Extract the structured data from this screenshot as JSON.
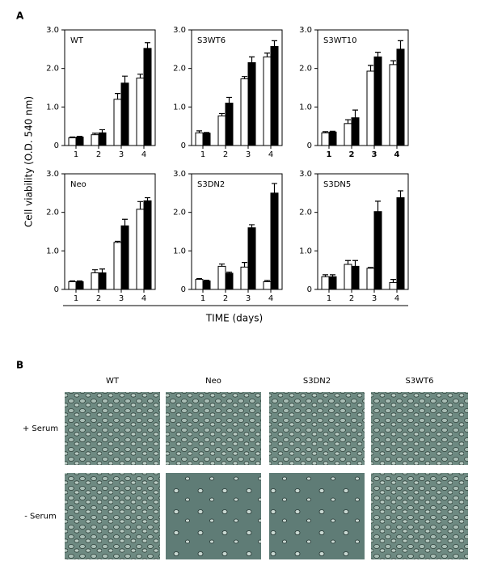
{
  "panel_a_label": "A",
  "panel_b_label": "B",
  "y_axis_label": "Cell viability (O.D. 540 nm)",
  "x_axis_label": "TIME (days)",
  "chart_data": [
    {
      "type": "bar",
      "title": "WT",
      "categories": [
        "1",
        "2",
        "3",
        "4"
      ],
      "ylim": [
        0,
        3
      ],
      "yticks": [
        0,
        {
          "value": 1,
          "label": "1.0"
        },
        {
          "value": 2,
          "label": "2.0"
        },
        {
          "value": 3,
          "label": "3.0"
        }
      ],
      "series": [
        {
          "color": "#ffffff",
          "values": [
            0.2,
            0.28,
            1.2,
            1.75
          ],
          "errors": [
            0.02,
            0.04,
            0.15,
            0.1
          ]
        },
        {
          "color": "#000000",
          "values": [
            0.22,
            0.33,
            1.62,
            2.52
          ],
          "errors": [
            0.02,
            0.08,
            0.18,
            0.15
          ]
        }
      ]
    },
    {
      "type": "bar",
      "title": "S3WT6",
      "categories": [
        "1",
        "2",
        "3",
        "4"
      ],
      "ylim": [
        0,
        3
      ],
      "yticks": [
        0,
        {
          "value": 1,
          "label": "1.0"
        },
        {
          "value": 2,
          "label": "2.0"
        },
        {
          "value": 3,
          "label": "3.0"
        }
      ],
      "series": [
        {
          "color": "#ffffff",
          "values": [
            0.33,
            0.77,
            1.73,
            2.3
          ],
          "errors": [
            0.05,
            0.06,
            0.06,
            0.1
          ]
        },
        {
          "color": "#000000",
          "values": [
            0.32,
            1.1,
            2.15,
            2.57
          ],
          "errors": [
            0.02,
            0.15,
            0.15,
            0.15
          ]
        }
      ]
    },
    {
      "type": "bar",
      "title": "S3WT10",
      "categories": [
        "1",
        "2",
        "3",
        "4"
      ],
      "ylim": [
        0,
        3
      ],
      "yticks": [
        0,
        {
          "value": 1,
          "label": "1.0"
        },
        {
          "value": 2,
          "label": "2.0"
        },
        {
          "value": 3,
          "label": "3.0"
        }
      ],
      "series": [
        {
          "color": "#ffffff",
          "values": [
            0.33,
            0.57,
            1.93,
            2.1
          ],
          "errors": [
            0.03,
            0.1,
            0.15,
            0.1
          ]
        },
        {
          "color": "#000000",
          "values": [
            0.35,
            0.72,
            2.3,
            2.5
          ],
          "errors": [
            0.02,
            0.2,
            0.12,
            0.22
          ]
        }
      ]
    },
    {
      "type": "bar",
      "title": "Neo",
      "categories": [
        "1",
        "2",
        "3",
        "4"
      ],
      "ylim": [
        0,
        3
      ],
      "yticks": [
        0,
        {
          "value": 1,
          "label": "1.0"
        },
        {
          "value": 2,
          "label": "2.0"
        },
        {
          "value": 3,
          "label": "3.0"
        }
      ],
      "series": [
        {
          "color": "#ffffff",
          "values": [
            0.2,
            0.43,
            1.22,
            2.08
          ],
          "errors": [
            0.02,
            0.08,
            0.03,
            0.2
          ]
        },
        {
          "color": "#000000",
          "values": [
            0.2,
            0.43,
            1.65,
            2.3
          ],
          "errors": [
            0.02,
            0.1,
            0.17,
            0.08
          ]
        }
      ]
    },
    {
      "type": "bar",
      "title": "S3DN2",
      "categories": [
        "1",
        "2",
        "3",
        "4"
      ],
      "ylim": [
        0,
        3
      ],
      "yticks": [
        0,
        {
          "value": 1,
          "label": "1.0"
        },
        {
          "value": 2,
          "label": "2.0"
        },
        {
          "value": 3,
          "label": "3.0"
        }
      ],
      "series": [
        {
          "color": "#ffffff",
          "values": [
            0.26,
            0.6,
            0.58,
            0.2
          ],
          "errors": [
            0.02,
            0.06,
            0.12,
            0.03
          ]
        },
        {
          "color": "#000000",
          "values": [
            0.22,
            0.42,
            1.6,
            2.5
          ],
          "errors": [
            0.02,
            0.03,
            0.08,
            0.25
          ]
        }
      ]
    },
    {
      "type": "bar",
      "title": "S3DN5",
      "categories": [
        "1",
        "2",
        "3",
        "4"
      ],
      "ylim": [
        0,
        3
      ],
      "yticks": [
        0,
        {
          "value": 1,
          "label": "1.0"
        },
        {
          "value": 2,
          "label": "2.0"
        },
        {
          "value": 3,
          "label": "3.0"
        }
      ],
      "series": [
        {
          "color": "#ffffff",
          "values": [
            0.33,
            0.65,
            0.55,
            0.18
          ],
          "errors": [
            0.05,
            0.1,
            0.02,
            0.08
          ]
        },
        {
          "color": "#000000",
          "values": [
            0.33,
            0.6,
            2.02,
            2.38
          ],
          "errors": [
            0.05,
            0.15,
            0.27,
            0.18
          ]
        }
      ]
    }
  ],
  "panel_b": {
    "column_headers": [
      "WT",
      "Neo",
      "S3DN2",
      "S3WT6"
    ],
    "row_labels": [
      "+ Serum",
      "- Serum"
    ]
  }
}
